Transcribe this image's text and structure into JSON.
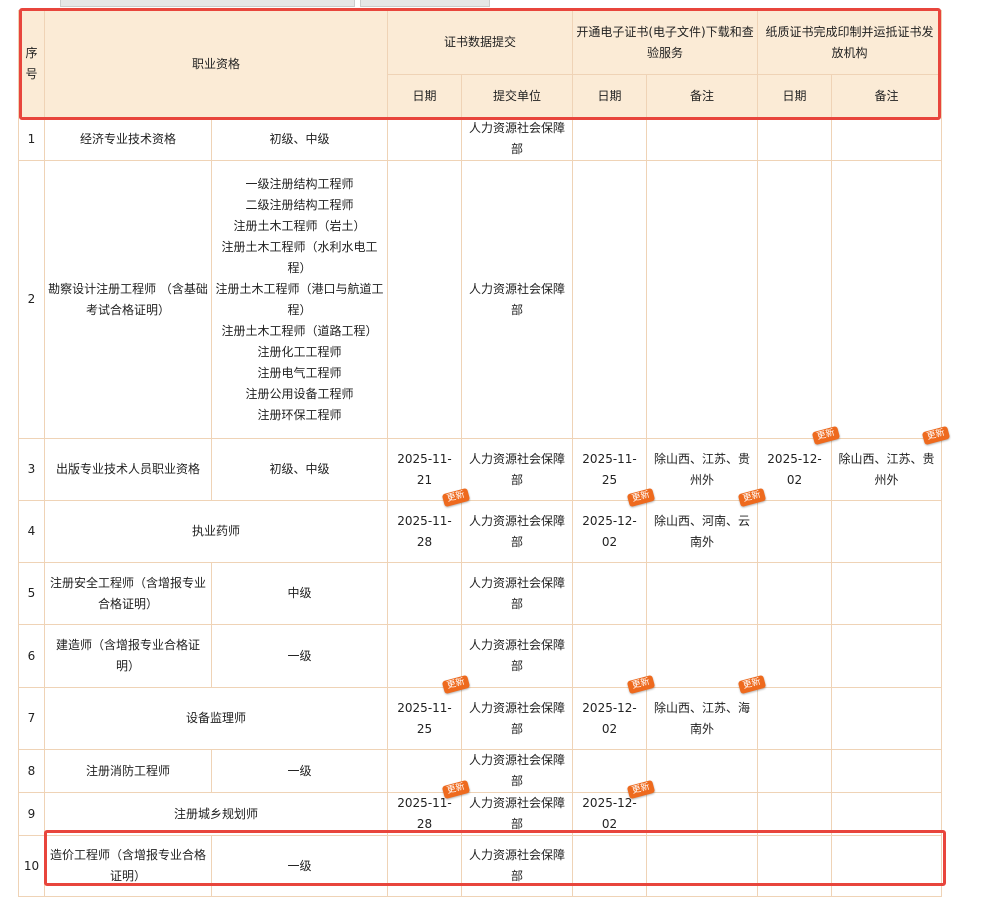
{
  "header": {
    "seq": "序号",
    "qualification": "职业资格",
    "submit": "证书数据提交",
    "electronic": "开通电子证书(电子文件)下载和查验服务",
    "paper": "纸质证书完成印制并运抵证书发放机构",
    "date": "日期",
    "unit": "提交单位",
    "note": "备注"
  },
  "badge_label": "更新",
  "colors": {
    "header_bg": "#fbebd6",
    "border": "#efd3b6",
    "badge": "#ee6a1e",
    "highlight": "#e8453c"
  },
  "rows": [
    {
      "seq": "1",
      "name": "经济专业技术资格",
      "level": [
        "初级、中级"
      ],
      "date": "",
      "unit": "人力资源社会保障部",
      "e_date": "",
      "e_note": "",
      "p_date": "",
      "p_note": "",
      "badges": []
    },
    {
      "seq": "2",
      "name": "勘察设计注册工程师 （含基础考试合格证明）",
      "level": [
        "一级注册结构工程师",
        "二级注册结构工程师",
        "注册土木工程师（岩土）",
        "注册土木工程师（水利水电工程）",
        "注册土木工程师（港口与航道工程）",
        "注册土木工程师（道路工程）",
        "注册化工工程师",
        "注册电气工程师",
        "注册公用设备工程师",
        "注册环保工程师"
      ],
      "date": "",
      "unit": "人力资源社会保障部",
      "e_date": "",
      "e_note": "",
      "p_date": "",
      "p_note": "",
      "badges": []
    },
    {
      "seq": "3",
      "name": "出版专业技术人员职业资格",
      "level": [
        "初级、中级"
      ],
      "date": "2025-11-21",
      "unit": "人力资源社会保障部",
      "e_date": "2025-11-25",
      "e_note": "除山西、江苏、贵州外",
      "p_date": "2025-12-02",
      "p_note": "除山西、江苏、贵州外",
      "badges": [
        "p_date",
        "p_note"
      ]
    },
    {
      "seq": "4",
      "name": "执业药师",
      "level": null,
      "date": "2025-11-28",
      "unit": "人力资源社会保障部",
      "e_date": "2025-12-02",
      "e_note": "除山西、河南、云南外",
      "p_date": "",
      "p_note": "",
      "badges": [
        "date",
        "e_date",
        "e_note"
      ]
    },
    {
      "seq": "5",
      "name": "注册安全工程师（含增报专业合格证明）",
      "level": [
        "中级"
      ],
      "date": "",
      "unit": "人力资源社会保障部",
      "e_date": "",
      "e_note": "",
      "p_date": "",
      "p_note": "",
      "badges": []
    },
    {
      "seq": "6",
      "name": "建造师（含增报专业合格证明）",
      "level": [
        "一级"
      ],
      "date": "",
      "unit": "人力资源社会保障部",
      "e_date": "",
      "e_note": "",
      "p_date": "",
      "p_note": "",
      "badges": []
    },
    {
      "seq": "7",
      "name": "设备监理师",
      "level": null,
      "date": "2025-11-25",
      "unit": "人力资源社会保障部",
      "e_date": "2025-12-02",
      "e_note": "除山西、江苏、海南外",
      "p_date": "",
      "p_note": "",
      "badges": [
        "date",
        "e_date",
        "e_note"
      ]
    },
    {
      "seq": "8",
      "name": "注册消防工程师",
      "level": [
        "一级"
      ],
      "date": "",
      "unit": "人力资源社会保障部",
      "e_date": "",
      "e_note": "",
      "p_date": "",
      "p_note": "",
      "badges": []
    },
    {
      "seq": "9",
      "name": "注册城乡规划师",
      "level": null,
      "date": "2025-11-28",
      "unit": "人力资源社会保障部",
      "e_date": "2025-12-02",
      "e_note": "",
      "p_date": "",
      "p_note": "",
      "badges": [
        "date",
        "e_date"
      ]
    },
    {
      "seq": "10",
      "name": "造价工程师（含增报专业合格证明）",
      "level": [
        "一级"
      ],
      "date": "",
      "unit": "人力资源社会保障部",
      "e_date": "",
      "e_note": "",
      "p_date": "",
      "p_note": "",
      "badges": []
    }
  ]
}
